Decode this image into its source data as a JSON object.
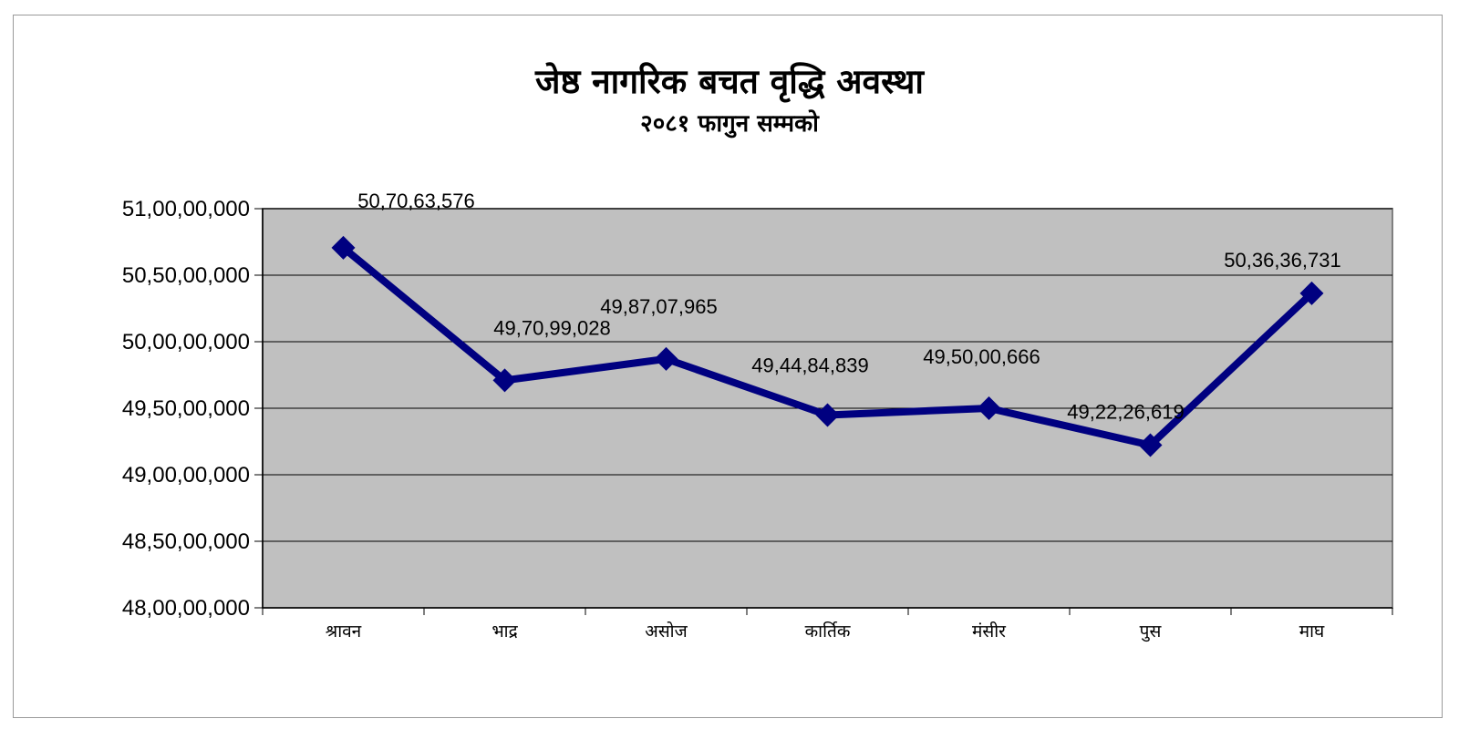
{
  "chart_data": {
    "type": "line",
    "title": "जेष्ठ नागरिक बचत वृद्धि अवस्था",
    "subtitle": "२०८१ फागुन सम्मको",
    "xlabel": "",
    "ylabel": "",
    "categories": [
      "श्रावन",
      "भाद्र",
      "असोज",
      "कार्तिक",
      "मंसीर",
      "पुस",
      "माघ"
    ],
    "series": [
      {
        "values": [
          507063576,
          497099028,
          498707965,
          494484839,
          495000666,
          492226619,
          503636731
        ],
        "labels": [
          "50,70,63,576",
          "49,70,99,028",
          "49,87,07,965",
          "49,44,84,839",
          "49,50,00,666",
          "49,22,26,619",
          "50,36,36,731"
        ]
      }
    ],
    "ylim": [
      480000000,
      510000000
    ],
    "yticks": [
      480000000,
      485000000,
      490000000,
      495000000,
      500000000,
      505000000,
      510000000
    ],
    "ytick_labels": [
      "48,00,00,000",
      "48,50,00,000",
      "49,00,00,000",
      "49,50,00,000",
      "50,00,00,000",
      "50,50,00,000",
      "51,00,00,000"
    ],
    "grid": true,
    "legend": "none",
    "colors": {
      "line": "#000080",
      "plot_bg": "#c0c0c0",
      "grid": "#000000"
    }
  }
}
